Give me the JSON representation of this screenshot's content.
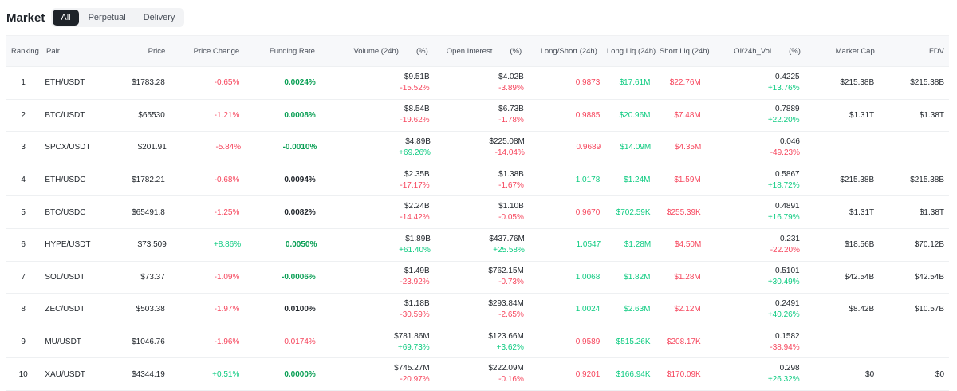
{
  "header": {
    "title": "Market"
  },
  "tabs": [
    {
      "label": "All",
      "active": true
    },
    {
      "label": "Perpetual",
      "active": false
    },
    {
      "label": "Delivery",
      "active": false
    }
  ],
  "columns": {
    "ranking": "Ranking",
    "pair": "Pair",
    "price": "Price",
    "price_change": "Price Change",
    "funding_rate": "Funding Rate",
    "volume": "Volume (24h)",
    "volume_pct": "(%)",
    "open_interest": "Open Interest",
    "open_interest_pct": "(%)",
    "long_short": "Long/Short (24h)",
    "long_liq": "Long Liq (24h)",
    "short_liq": "Short Liq (24h)",
    "oi_vol": "OI/24h_Vol",
    "oi_vol_pct": "(%)",
    "market_cap": "Market Cap",
    "fdv": "FDV"
  },
  "colors": {
    "green": "#0ecb81",
    "green_dark": "#079e53",
    "red": "#f6465d",
    "text": "#1e2329"
  },
  "rows": [
    {
      "rank": "1",
      "pair": "ETH/USDT",
      "price": "$1783.28",
      "change": "-0.65%",
      "change_dir": "down",
      "funding": "0.0024%",
      "funding_color": "green",
      "volume": "$9.51B",
      "volume_pct": "-15.52%",
      "volume_dir": "down",
      "oi": "$4.02B",
      "oi_pct": "-3.89%",
      "oi_dir": "down",
      "ls": "0.9873",
      "ls_dir": "down",
      "lliq": "$17.61M",
      "sliq": "$22.76M",
      "oivol": "0.4225",
      "oivol_pct": "+13.76%",
      "oivol_dir": "up",
      "mcap": "$215.38B",
      "fdv": "$215.38B"
    },
    {
      "rank": "2",
      "pair": "BTC/USDT",
      "price": "$65530",
      "change": "-1.21%",
      "change_dir": "down",
      "funding": "0.0008%",
      "funding_color": "green",
      "volume": "$8.54B",
      "volume_pct": "-19.62%",
      "volume_dir": "down",
      "oi": "$6.73B",
      "oi_pct": "-1.78%",
      "oi_dir": "down",
      "ls": "0.9885",
      "ls_dir": "down",
      "lliq": "$20.96M",
      "sliq": "$7.48M",
      "oivol": "0.7889",
      "oivol_pct": "+22.20%",
      "oivol_dir": "up",
      "mcap": "$1.31T",
      "fdv": "$1.38T"
    },
    {
      "rank": "3",
      "pair": "SPCX/USDT",
      "price": "$201.91",
      "change": "-5.84%",
      "change_dir": "down",
      "funding": "-0.0010%",
      "funding_color": "green",
      "volume": "$4.89B",
      "volume_pct": "+69.26%",
      "volume_dir": "up",
      "oi": "$225.08M",
      "oi_pct": "-14.04%",
      "oi_dir": "down",
      "ls": "0.9689",
      "ls_dir": "down",
      "lliq": "$14.09M",
      "sliq": "$4.35M",
      "oivol": "0.046",
      "oivol_pct": "-49.23%",
      "oivol_dir": "down",
      "mcap": "",
      "fdv": ""
    },
    {
      "rank": "4",
      "pair": "ETH/USDC",
      "price": "$1782.21",
      "change": "-0.68%",
      "change_dir": "down",
      "funding": "0.0094%",
      "funding_color": "black",
      "volume": "$2.35B",
      "volume_pct": "-17.17%",
      "volume_dir": "down",
      "oi": "$1.38B",
      "oi_pct": "-1.67%",
      "oi_dir": "down",
      "ls": "1.0178",
      "ls_dir": "up",
      "lliq": "$1.24M",
      "sliq": "$1.59M",
      "oivol": "0.5867",
      "oivol_pct": "+18.72%",
      "oivol_dir": "up",
      "mcap": "$215.38B",
      "fdv": "$215.38B"
    },
    {
      "rank": "5",
      "pair": "BTC/USDC",
      "price": "$65491.8",
      "change": "-1.25%",
      "change_dir": "down",
      "funding": "0.0082%",
      "funding_color": "black",
      "volume": "$2.24B",
      "volume_pct": "-14.42%",
      "volume_dir": "down",
      "oi": "$1.10B",
      "oi_pct": "-0.05%",
      "oi_dir": "down",
      "ls": "0.9670",
      "ls_dir": "down",
      "lliq": "$702.59K",
      "sliq": "$255.39K",
      "oivol": "0.4891",
      "oivol_pct": "+16.79%",
      "oivol_dir": "up",
      "mcap": "$1.31T",
      "fdv": "$1.38T"
    },
    {
      "rank": "6",
      "pair": "HYPE/USDT",
      "price": "$73.509",
      "change": "+8.86%",
      "change_dir": "up",
      "funding": "0.0050%",
      "funding_color": "green",
      "volume": "$1.89B",
      "volume_pct": "+61.40%",
      "volume_dir": "up",
      "oi": "$437.76M",
      "oi_pct": "+25.58%",
      "oi_dir": "up",
      "ls": "1.0547",
      "ls_dir": "up",
      "lliq": "$1.28M",
      "sliq": "$4.50M",
      "oivol": "0.231",
      "oivol_pct": "-22.20%",
      "oivol_dir": "down",
      "mcap": "$18.56B",
      "fdv": "$70.12B"
    },
    {
      "rank": "7",
      "pair": "SOL/USDT",
      "price": "$73.37",
      "change": "-1.09%",
      "change_dir": "down",
      "funding": "-0.0006%",
      "funding_color": "green",
      "volume": "$1.49B",
      "volume_pct": "-23.92%",
      "volume_dir": "down",
      "oi": "$762.15M",
      "oi_pct": "-0.73%",
      "oi_dir": "down",
      "ls": "1.0068",
      "ls_dir": "up",
      "lliq": "$1.82M",
      "sliq": "$1.28M",
      "oivol": "0.5101",
      "oivol_pct": "+30.49%",
      "oivol_dir": "up",
      "mcap": "$42.54B",
      "fdv": "$42.54B"
    },
    {
      "rank": "8",
      "pair": "ZEC/USDT",
      "price": "$503.38",
      "change": "-1.97%",
      "change_dir": "down",
      "funding": "0.0100%",
      "funding_color": "black",
      "volume": "$1.18B",
      "volume_pct": "-30.59%",
      "volume_dir": "down",
      "oi": "$293.84M",
      "oi_pct": "-2.65%",
      "oi_dir": "down",
      "ls": "1.0024",
      "ls_dir": "up",
      "lliq": "$2.63M",
      "sliq": "$2.12M",
      "oivol": "0.2491",
      "oivol_pct": "+40.26%",
      "oivol_dir": "up",
      "mcap": "$8.42B",
      "fdv": "$10.57B"
    },
    {
      "rank": "9",
      "pair": "MU/USDT",
      "price": "$1046.76",
      "change": "-1.96%",
      "change_dir": "down",
      "funding": "0.0174%",
      "funding_color": "red",
      "volume": "$781.86M",
      "volume_pct": "+69.73%",
      "volume_dir": "up",
      "oi": "$123.66M",
      "oi_pct": "+3.62%",
      "oi_dir": "up",
      "ls": "0.9589",
      "ls_dir": "down",
      "lliq": "$515.26K",
      "sliq": "$208.17K",
      "oivol": "0.1582",
      "oivol_pct": "-38.94%",
      "oivol_dir": "down",
      "mcap": "",
      "fdv": ""
    },
    {
      "rank": "10",
      "pair": "XAU/USDT",
      "price": "$4344.19",
      "change": "+0.51%",
      "change_dir": "up",
      "funding": "0.0000%",
      "funding_color": "green",
      "volume": "$745.27M",
      "volume_pct": "-20.97%",
      "volume_dir": "down",
      "oi": "$222.09M",
      "oi_pct": "-0.16%",
      "oi_dir": "down",
      "ls": "0.9201",
      "ls_dir": "down",
      "lliq": "$166.94K",
      "sliq": "$170.09K",
      "oivol": "0.298",
      "oivol_pct": "+26.32%",
      "oivol_dir": "up",
      "mcap": "$0",
      "fdv": "$0"
    }
  ]
}
